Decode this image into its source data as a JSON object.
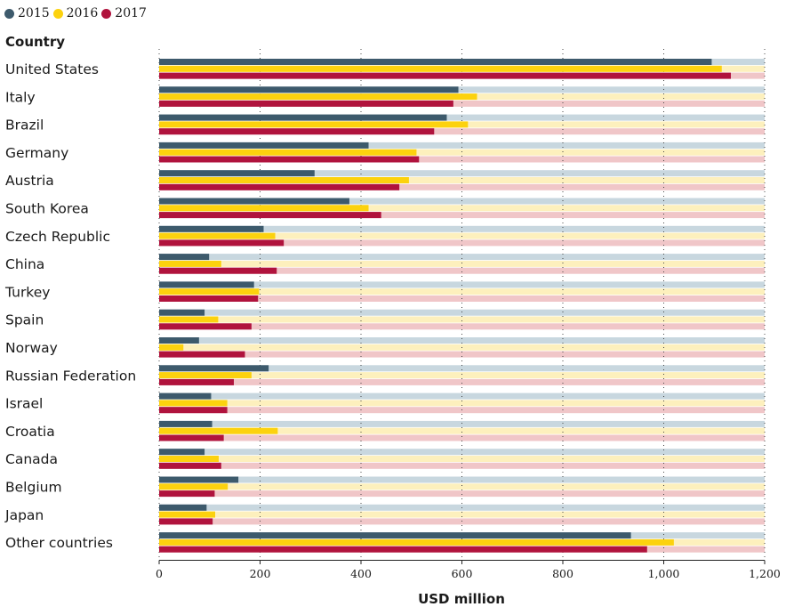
{
  "chart_data": {
    "type": "bar",
    "orientation": "horizontal",
    "title": "",
    "column_header": "Country",
    "xlabel": "USD million",
    "ylabel": "",
    "xlim": [
      0,
      1200
    ],
    "xticks": [
      0,
      200,
      400,
      600,
      800,
      1000,
      1200
    ],
    "xtick_labels": [
      "0",
      "200",
      "400",
      "600",
      "800",
      "1,000",
      "1,200"
    ],
    "grid": "vertical dotted",
    "legend_position": "top-left",
    "categories": [
      "United States",
      "Italy",
      "Brazil",
      "Germany",
      "Austria",
      "South Korea",
      "Czech Republic",
      "China",
      "Turkey",
      "Spain",
      "Norway",
      "Russian Federation",
      "Israel",
      "Croatia",
      "Canada",
      "Belgium",
      "Japan",
      "Other countries"
    ],
    "series": [
      {
        "name": "2015",
        "color": "#3d5a6c",
        "track_color": "#c8d7df",
        "values": [
          1095,
          593,
          570,
          415,
          308,
          377,
          207,
          99,
          188,
          90,
          79,
          217,
          103,
          105,
          90,
          157,
          94,
          935
        ]
      },
      {
        "name": "2016",
        "color": "#fcd20e",
        "track_color": "#fdf0bd",
        "values": [
          1115,
          630,
          612,
          510,
          495,
          415,
          230,
          123,
          198,
          117,
          48,
          183,
          135,
          235,
          118,
          136,
          111,
          1020
        ]
      },
      {
        "name": "2017",
        "color": "#b0133d",
        "track_color": "#f0c6c8",
        "values": [
          1133,
          583,
          545,
          515,
          476,
          440,
          247,
          233,
          196,
          183,
          170,
          148,
          135,
          128,
          123,
          110,
          106,
          967
        ]
      }
    ]
  }
}
